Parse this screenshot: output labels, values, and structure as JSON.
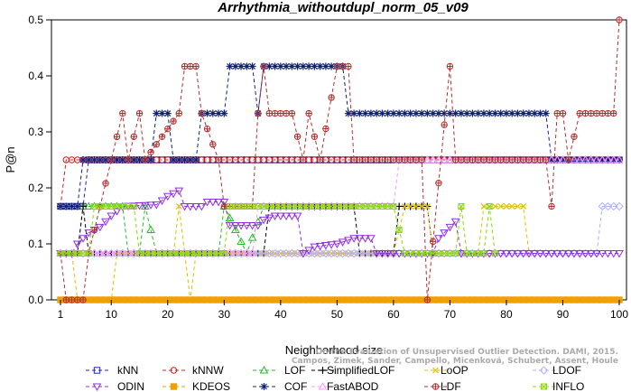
{
  "chart_data": {
    "type": "line",
    "title": "Arrhythmia_withoutdupl_norm_05_v09",
    "xlabel": "Neighborhood size",
    "ylabel": "P@n",
    "xlim": [
      0,
      101
    ],
    "ylim": [
      0,
      0.5
    ],
    "xticks": [
      1,
      10,
      20,
      30,
      40,
      50,
      60,
      70,
      80,
      90,
      100
    ],
    "yticks": [
      0.0,
      0.1,
      0.2,
      0.3,
      0.4,
      0.5
    ],
    "grid": false,
    "legend_position": "bottom",
    "watermark": [
      "Campos, Zimek, Sander, Campello, Micenková, Schubert, Assent, Houle",
      "On the Evaluation of Unsupervised Outlier Detection. DAMI, 2015."
    ],
    "series": [
      {
        "name": "kNN",
        "color": "#2020c0",
        "marker": "square",
        "segments": [
          [
            1,
            0.167
          ],
          [
            5,
            0.167
          ],
          [
            6,
            0.25
          ],
          [
            100,
            0.25
          ]
        ]
      },
      {
        "name": "kNNW",
        "color": "#d02020",
        "marker": "circle",
        "segments": [
          [
            1,
            0.167
          ],
          [
            2,
            0.25
          ],
          [
            100,
            0.25
          ]
        ]
      },
      {
        "name": "LOF",
        "color": "#22c022",
        "marker": "triangle",
        "segments": [
          [
            1,
            0.083
          ],
          [
            4,
            0.083
          ],
          [
            5,
            0.167
          ],
          [
            12,
            0.167
          ],
          [
            13,
            0.083
          ],
          [
            15,
            0.083
          ],
          [
            16,
            0.167
          ],
          [
            18,
            0.083
          ],
          [
            29,
            0.083
          ],
          [
            30,
            0.167
          ],
          [
            34,
            0.083
          ],
          [
            37,
            0.167
          ],
          [
            60,
            0.167
          ]
        ]
      },
      {
        "name": "SimplifiedLOF",
        "color": "#000000",
        "marker": "plus",
        "segments": [
          [
            1,
            0.083
          ],
          [
            4,
            0.083
          ],
          [
            5,
            0.167
          ],
          [
            6,
            0.083
          ],
          [
            10,
            0.083
          ],
          [
            16,
            0.083
          ],
          [
            37,
            0.083
          ],
          [
            38,
            0.167
          ],
          [
            53,
            0.167
          ],
          [
            54,
            0.083
          ],
          [
            60,
            0.083
          ],
          [
            61,
            0.167
          ],
          [
            66,
            0.167
          ],
          [
            67,
            0.083
          ]
        ]
      },
      {
        "name": "LoOP",
        "color": "#e0c000",
        "marker": "x",
        "segments": [
          [
            1,
            0.083
          ],
          [
            3,
            0.083
          ],
          [
            4,
            0.0
          ],
          [
            10,
            0.0
          ],
          [
            11,
            0.083
          ],
          [
            21,
            0.083
          ],
          [
            22,
            0.167
          ],
          [
            24,
            0.0
          ],
          [
            25,
            0.083
          ],
          [
            60,
            0.083
          ],
          [
            62,
            0.167
          ],
          [
            66,
            0.167
          ],
          [
            67,
            0.083
          ],
          [
            75,
            0.083
          ],
          [
            76,
            0.167
          ],
          [
            83,
            0.167
          ],
          [
            84,
            0.083
          ]
        ]
      },
      {
        "name": "LDOF",
        "color": "#b0b0ff",
        "marker": "diamond",
        "segments": [
          [
            1,
            0.083
          ],
          [
            96,
            0.083
          ],
          [
            97,
            0.167
          ],
          [
            100,
            0.167
          ]
        ]
      },
      {
        "name": "ODIN",
        "color": "#9030e0",
        "marker": "triangle-down",
        "segments": [
          [
            1,
            0.083
          ],
          [
            3,
            0.083
          ],
          [
            4,
            0.1
          ],
          [
            6,
            0.12
          ],
          [
            8,
            0.13
          ],
          [
            10,
            0.15
          ],
          [
            12,
            0.167
          ],
          [
            18,
            0.17
          ],
          [
            20,
            0.185
          ],
          [
            22,
            0.195
          ],
          [
            23,
            0.167
          ],
          [
            26,
            0.167
          ],
          [
            27,
            0.175
          ],
          [
            30,
            0.175
          ],
          [
            31,
            0.133
          ],
          [
            36,
            0.133
          ],
          [
            37,
            0.143
          ],
          [
            39,
            0.15
          ],
          [
            43,
            0.15
          ],
          [
            44,
            0.083
          ],
          [
            46,
            0.095
          ],
          [
            50,
            0.1
          ],
          [
            53,
            0.11
          ],
          [
            56,
            0.11
          ],
          [
            57,
            0.083
          ],
          [
            67,
            0.083
          ],
          [
            68,
            0.11
          ],
          [
            70,
            0.13
          ],
          [
            71,
            0.14
          ],
          [
            72,
            0.083
          ],
          [
            100,
            0.083
          ]
        ]
      },
      {
        "name": "KDEOS",
        "color": "#f0a000",
        "marker": "square-filled",
        "segments": [
          [
            1,
            0.0
          ],
          [
            100,
            0.0
          ]
        ]
      },
      {
        "name": "COF",
        "color": "#102080",
        "marker": "star",
        "segments": [
          [
            1,
            0.167
          ],
          [
            4,
            0.167
          ],
          [
            5,
            0.25
          ],
          [
            17,
            0.25
          ],
          [
            18,
            0.333
          ],
          [
            20,
            0.333
          ],
          [
            21,
            0.25
          ],
          [
            25,
            0.25
          ],
          [
            26,
            0.333
          ],
          [
            30,
            0.333
          ],
          [
            31,
            0.417
          ],
          [
            35,
            0.417
          ],
          [
            36,
            0.333
          ],
          [
            37,
            0.417
          ],
          [
            51,
            0.417
          ],
          [
            52,
            0.333
          ],
          [
            87,
            0.333
          ],
          [
            88,
            0.25
          ],
          [
            100,
            0.25
          ]
        ]
      },
      {
        "name": "FastABOD",
        "color": "#ff99ff",
        "marker": "triangle-open",
        "segments": [
          [
            1,
            0.083
          ],
          [
            35,
            0.083
          ],
          [
            36,
            0.167
          ],
          [
            60,
            0.167
          ],
          [
            61,
            0.25
          ],
          [
            100,
            0.25
          ]
        ]
      },
      {
        "name": "LDF",
        "color": "#b03030",
        "marker": "circle-plus",
        "segments": [
          [
            1,
            0.083
          ],
          [
            2,
            0.0
          ],
          [
            5,
            0.0
          ],
          [
            6,
            0.083
          ],
          [
            12,
            0.333
          ],
          [
            13,
            0.25
          ],
          [
            15,
            0.333
          ],
          [
            16,
            0.25
          ],
          [
            22,
            0.333
          ],
          [
            23,
            0.417
          ],
          [
            25,
            0.417
          ],
          [
            26,
            0.333
          ],
          [
            29,
            0.25
          ],
          [
            30,
            0.167
          ],
          [
            35,
            0.167
          ],
          [
            36,
            0.333
          ],
          [
            37,
            0.417
          ],
          [
            38,
            0.333
          ],
          [
            42,
            0.333
          ],
          [
            44,
            0.25
          ],
          [
            45,
            0.333
          ],
          [
            47,
            0.25
          ],
          [
            50,
            0.417
          ],
          [
            52,
            0.417
          ],
          [
            53,
            0.25
          ],
          [
            65,
            0.25
          ],
          [
            66,
            0.0
          ],
          [
            70,
            0.417
          ],
          [
            71,
            0.25
          ],
          [
            87,
            0.25
          ],
          [
            88,
            0.167
          ],
          [
            89,
            0.333
          ],
          [
            90,
            0.333
          ],
          [
            91,
            0.25
          ],
          [
            93,
            0.333
          ],
          [
            99,
            0.333
          ],
          [
            100,
            0.5
          ]
        ]
      },
      {
        "name": "INFLO",
        "color": "#88dd00",
        "marker": "hex",
        "segments": [
          [
            1,
            0.083
          ],
          [
            6,
            0.083
          ],
          [
            7,
            0.167
          ],
          [
            14,
            0.167
          ],
          [
            15,
            0.083
          ],
          [
            30,
            0.083
          ],
          [
            31,
            0.167
          ],
          [
            60,
            0.167
          ],
          [
            62,
            0.083
          ],
          [
            71,
            0.083
          ],
          [
            72,
            0.167
          ],
          [
            73,
            0.083
          ],
          [
            76,
            0.083
          ],
          [
            77,
            0.167
          ],
          [
            78,
            0.083
          ]
        ]
      }
    ]
  }
}
